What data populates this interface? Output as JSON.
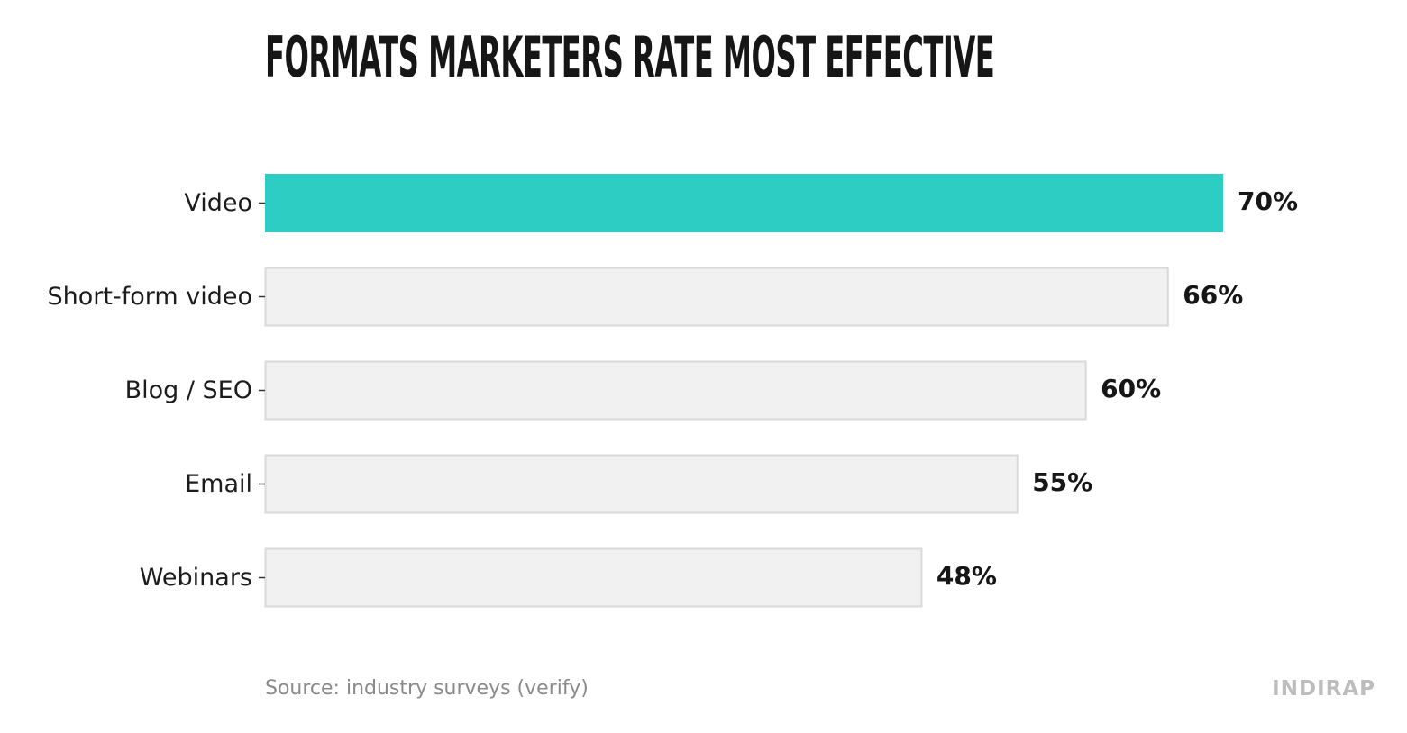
{
  "chart_data": {
    "type": "bar",
    "orientation": "horizontal",
    "title": "FORMATS MARKETERS RATE MOST EFFECTIVE",
    "categories": [
      "Video",
      "Short-form video",
      "Blog / SEO",
      "Email",
      "Webinars"
    ],
    "values": [
      70,
      66,
      60,
      55,
      48
    ],
    "value_labels": [
      "70%",
      "66%",
      "60%",
      "55%",
      "48%"
    ],
    "unit": "%",
    "xlim": [
      0,
      70
    ],
    "grid": false,
    "highlight_index": 0,
    "colors": {
      "highlight": "#2ECDC4",
      "bar": "#F1F1F1",
      "bar_border": "#D9D9D9",
      "text": "#161616"
    }
  },
  "footer": {
    "source": "Source: industry surveys (verify)",
    "brand": "INDIRAP"
  }
}
